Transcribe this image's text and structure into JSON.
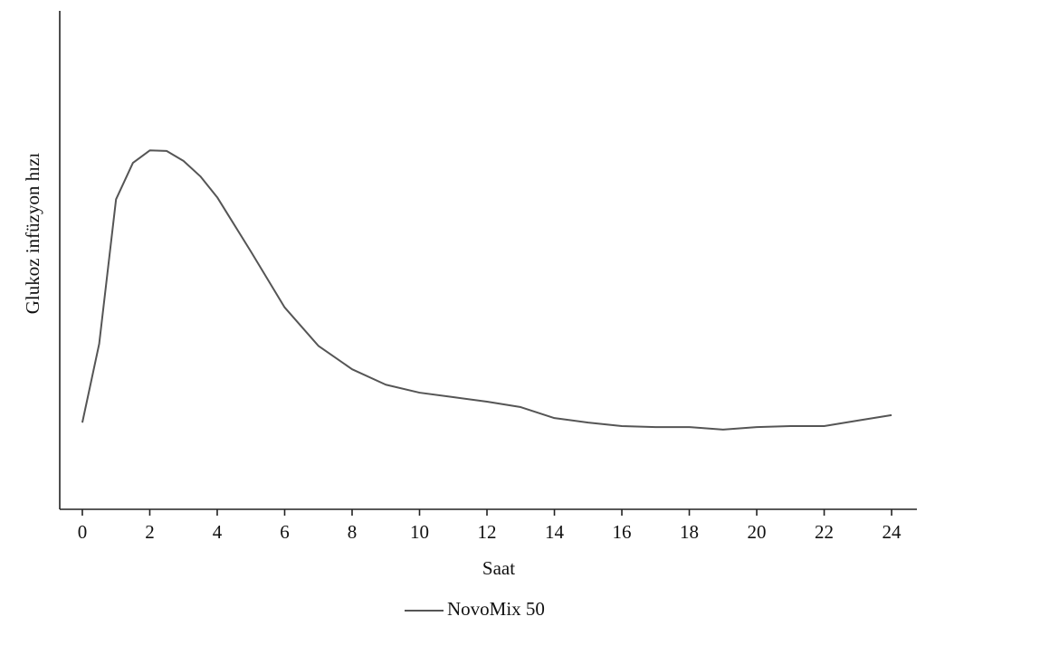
{
  "chart_data": {
    "type": "line",
    "x_label": "Saat",
    "y_label": "Glukoz infüzyon hızı",
    "x": [
      0,
      0.5,
      1,
      1.5,
      2,
      2.5,
      3,
      3.5,
      4,
      5,
      6,
      7,
      8,
      9,
      10,
      11,
      12,
      13,
      14,
      15,
      16,
      17,
      18,
      19,
      20,
      21,
      22,
      23,
      24
    ],
    "series": [
      {
        "name": "NovoMix 50",
        "color": "#555555",
        "values": [
          17.4,
          33.2,
          62.2,
          69.5,
          72.0,
          71.9,
          69.9,
          66.8,
          62.6,
          51.7,
          40.5,
          32.8,
          28.1,
          25.0,
          23.4,
          22.5,
          21.6,
          20.5,
          18.3,
          17.4,
          16.7,
          16.5,
          16.5,
          16.0,
          16.5,
          16.7,
          16.7,
          17.8,
          18.9
        ]
      }
    ],
    "xlim": [
      -0.67,
      24.75
    ],
    "ylim": [
      0,
      100
    ],
    "xticks": [
      0,
      2,
      4,
      6,
      8,
      10,
      12,
      14,
      16,
      18,
      20,
      22,
      24
    ],
    "legend": "bottom"
  }
}
